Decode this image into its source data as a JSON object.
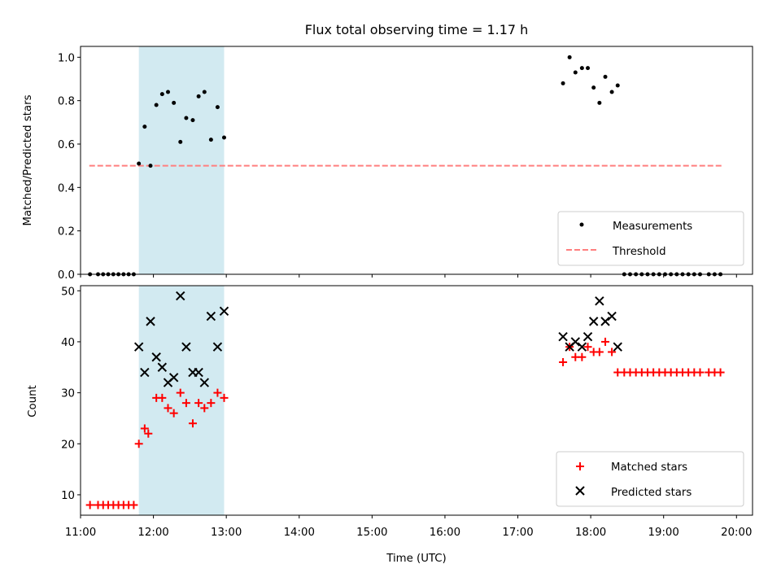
{
  "title": "Flux total observing time = 1.17 h",
  "colors": {
    "shade": "#add8e6",
    "measure": "#000000",
    "threshold": "#ff7f7f",
    "matched": "#ff0000",
    "predicted": "#000000"
  },
  "chart_data": [
    {
      "type": "scatter",
      "panel": "top",
      "ylabel": "Matched/Predicted stars",
      "xlabel": "",
      "xlim": [
        11.0,
        20.22
      ],
      "ylim": [
        0.0,
        1.05
      ],
      "yticks": [
        0.0,
        0.2,
        0.4,
        0.6,
        0.8,
        1.0
      ],
      "ytick_labels": [
        "0.0",
        "0.2",
        "0.4",
        "0.6",
        "0.8",
        "1.0"
      ],
      "shaded_span": [
        11.8,
        12.97
      ],
      "legend": {
        "placement": "lower right",
        "entries": [
          "Measurements",
          "Threshold"
        ]
      },
      "threshold": {
        "name": "Threshold",
        "y": 0.5,
        "x": [
          11.12,
          19.8
        ]
      },
      "series": [
        {
          "name": "Measurements",
          "marker": "dot",
          "points": [
            [
              11.13,
              0.0
            ],
            [
              11.24,
              0.0
            ],
            [
              11.31,
              0.0
            ],
            [
              11.38,
              0.0
            ],
            [
              11.45,
              0.0
            ],
            [
              11.52,
              0.0
            ],
            [
              11.59,
              0.0
            ],
            [
              11.66,
              0.0
            ],
            [
              11.73,
              0.0
            ],
            [
              11.8,
              0.51
            ],
            [
              11.88,
              0.68
            ],
            [
              11.96,
              0.5
            ],
            [
              12.04,
              0.78
            ],
            [
              12.12,
              0.83
            ],
            [
              12.2,
              0.84
            ],
            [
              12.28,
              0.79
            ],
            [
              12.37,
              0.61
            ],
            [
              12.45,
              0.72
            ],
            [
              12.54,
              0.71
            ],
            [
              12.62,
              0.82
            ],
            [
              12.7,
              0.84
            ],
            [
              12.79,
              0.62
            ],
            [
              12.88,
              0.77
            ],
            [
              12.97,
              0.63
            ],
            [
              17.62,
              0.88
            ],
            [
              17.71,
              1.0
            ],
            [
              17.79,
              0.93
            ],
            [
              17.88,
              0.95
            ],
            [
              17.96,
              0.95
            ],
            [
              18.04,
              0.86
            ],
            [
              18.12,
              0.79
            ],
            [
              18.2,
              0.91
            ],
            [
              18.29,
              0.84
            ],
            [
              18.37,
              0.87
            ],
            [
              18.46,
              0.0
            ],
            [
              18.54,
              0.0
            ],
            [
              18.62,
              0.0
            ],
            [
              18.7,
              0.0
            ],
            [
              18.78,
              0.0
            ],
            [
              18.86,
              0.0
            ],
            [
              18.94,
              0.0
            ],
            [
              19.02,
              0.0
            ],
            [
              19.1,
              0.0
            ],
            [
              19.18,
              0.0
            ],
            [
              19.26,
              0.0
            ],
            [
              19.34,
              0.0
            ],
            [
              19.42,
              0.0
            ],
            [
              19.5,
              0.0
            ],
            [
              19.62,
              0.0
            ],
            [
              19.7,
              0.0
            ],
            [
              19.78,
              0.0
            ]
          ]
        }
      ]
    },
    {
      "type": "scatter",
      "panel": "bottom",
      "ylabel": "Count",
      "xlabel": "Time (UTC)",
      "xlim": [
        11.0,
        20.22
      ],
      "ylim": [
        6.0,
        51.0
      ],
      "yticks": [
        10,
        20,
        30,
        40,
        50
      ],
      "ytick_labels": [
        "10",
        "20",
        "30",
        "40",
        "50"
      ],
      "xticks": [
        11,
        12,
        13,
        14,
        15,
        16,
        17,
        18,
        19,
        20
      ],
      "xtick_labels": [
        "11:00",
        "12:00",
        "13:00",
        "14:00",
        "15:00",
        "16:00",
        "17:00",
        "18:00",
        "19:00",
        "20:00"
      ],
      "shaded_span": [
        11.8,
        12.97
      ],
      "legend": {
        "placement": "lower right",
        "entries": [
          "Matched stars",
          "Predicted stars"
        ]
      },
      "series": [
        {
          "name": "Matched stars",
          "marker": "plus",
          "points": [
            [
              11.13,
              8
            ],
            [
              11.24,
              8
            ],
            [
              11.31,
              8
            ],
            [
              11.38,
              8
            ],
            [
              11.45,
              8
            ],
            [
              11.52,
              8
            ],
            [
              11.59,
              8
            ],
            [
              11.66,
              8
            ],
            [
              11.73,
              8
            ],
            [
              11.8,
              20
            ],
            [
              11.88,
              23
            ],
            [
              11.93,
              22
            ],
            [
              12.04,
              29
            ],
            [
              12.12,
              29
            ],
            [
              12.2,
              27
            ],
            [
              12.28,
              26
            ],
            [
              12.37,
              30
            ],
            [
              12.45,
              28
            ],
            [
              12.54,
              24
            ],
            [
              12.62,
              28
            ],
            [
              12.7,
              27
            ],
            [
              12.79,
              28
            ],
            [
              12.88,
              30
            ],
            [
              12.97,
              29
            ],
            [
              17.62,
              36
            ],
            [
              17.71,
              39
            ],
            [
              17.79,
              37
            ],
            [
              17.88,
              37
            ],
            [
              17.96,
              39
            ],
            [
              18.04,
              38
            ],
            [
              18.12,
              38
            ],
            [
              18.2,
              40
            ],
            [
              18.29,
              38
            ],
            [
              18.37,
              34
            ],
            [
              18.46,
              34
            ],
            [
              18.54,
              34
            ],
            [
              18.62,
              34
            ],
            [
              18.7,
              34
            ],
            [
              18.78,
              34
            ],
            [
              18.86,
              34
            ],
            [
              18.94,
              34
            ],
            [
              19.02,
              34
            ],
            [
              19.1,
              34
            ],
            [
              19.18,
              34
            ],
            [
              19.26,
              34
            ],
            [
              19.34,
              34
            ],
            [
              19.42,
              34
            ],
            [
              19.5,
              34
            ],
            [
              19.62,
              34
            ],
            [
              19.7,
              34
            ],
            [
              19.78,
              34
            ]
          ]
        },
        {
          "name": "Predicted stars",
          "marker": "x",
          "points": [
            [
              11.8,
              39
            ],
            [
              11.88,
              34
            ],
            [
              11.96,
              44
            ],
            [
              12.04,
              37
            ],
            [
              12.12,
              35
            ],
            [
              12.2,
              32
            ],
            [
              12.28,
              33
            ],
            [
              12.37,
              49
            ],
            [
              12.45,
              39
            ],
            [
              12.54,
              34
            ],
            [
              12.62,
              34
            ],
            [
              12.7,
              32
            ],
            [
              12.79,
              45
            ],
            [
              12.88,
              39
            ],
            [
              12.97,
              46
            ],
            [
              17.62,
              41
            ],
            [
              17.71,
              39
            ],
            [
              17.79,
              40
            ],
            [
              17.88,
              39
            ],
            [
              17.96,
              41
            ],
            [
              18.04,
              44
            ],
            [
              18.12,
              48
            ],
            [
              18.2,
              44
            ],
            [
              18.29,
              45
            ],
            [
              18.37,
              39
            ]
          ]
        }
      ]
    }
  ]
}
